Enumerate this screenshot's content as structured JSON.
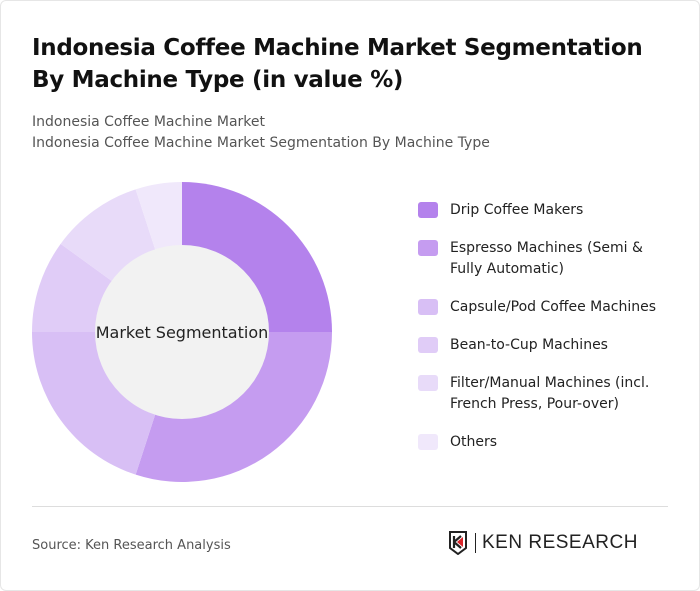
{
  "title": "Indonesia Coffee Machine Market Segmentation By Machine Type (in value %)",
  "subtitle1": "Indonesia Coffee Machine Market",
  "subtitle2": "Indonesia Coffee Machine Market Segmentation By Machine Type",
  "source": "Source: Ken Research Analysis",
  "logo_text": "KEN RESEARCH",
  "chart_data": {
    "type": "pie",
    "variant": "donut",
    "center_label": "Market Segmentation",
    "categories": [
      "Drip Coffee Makers",
      "Espresso Machines (Semi & Fully Automatic)",
      "Capsule/Pod Coffee Machines",
      "Bean-to-Cup Machines",
      "Filter/Manual Machines (incl. French Press, Pour-over)",
      "Others"
    ],
    "values": [
      25,
      30,
      20,
      10,
      10,
      5
    ],
    "colors": [
      "#b482ec",
      "#c59cf0",
      "#d8bff5",
      "#e0ccf7",
      "#e8dbf9",
      "#f0e8fb"
    ],
    "legend": "right"
  }
}
